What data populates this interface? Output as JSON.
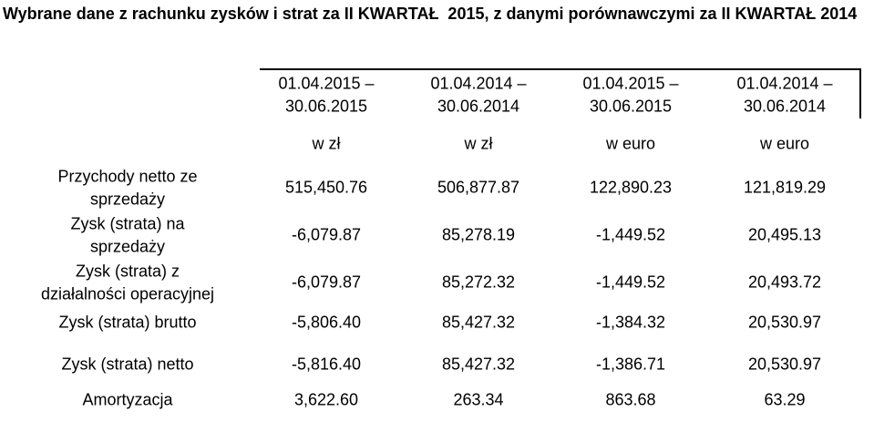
{
  "title": "Wybrane dane z rachunku zysków i strat za II KWARTAŁ  2015, z danymi porównawczymi za II KWARTAŁ 2014",
  "table": {
    "headers": [
      [
        "01.04.2015 –",
        "30.06.2015"
      ],
      [
        "01.04.2014 –",
        "30.06.2014"
      ],
      [
        "01.04.2015 –",
        "30.06.2015"
      ],
      [
        "01.04.2014 –",
        "30.06.2014"
      ]
    ],
    "units": [
      "w zł",
      "w zł",
      "w euro",
      "w euro"
    ],
    "rows": [
      {
        "label": [
          "Przychody netto ze",
          "sprzedaży"
        ],
        "values": [
          "515,450.76",
          "506,877.87",
          "122,890.23",
          "121,819.29"
        ]
      },
      {
        "label": [
          "Zysk (strata) na",
          "sprzedaży"
        ],
        "values": [
          "-6,079.87",
          "85,278.19",
          "-1,449.52",
          "20,495.13"
        ]
      },
      {
        "label": [
          "Zysk (strata) z",
          "działalności operacyjnej"
        ],
        "values": [
          "-6,079.87",
          "85,272.32",
          "-1,449.52",
          "20,493.72"
        ]
      },
      {
        "label": [
          "Zysk (strata) brutto"
        ],
        "values": [
          "-5,806.40",
          "85,427.32",
          "-1,384.32",
          "20,530.97"
        ]
      },
      {
        "label": [
          "Zysk (strata) netto"
        ],
        "values": [
          "-5,816.40",
          "85,427.32",
          "-1,386.71",
          "20,530.97"
        ]
      },
      {
        "label": [
          "Amortyzacja"
        ],
        "values": [
          "3,622.60",
          "263.34",
          "863.68",
          "63.29"
        ]
      }
    ]
  }
}
